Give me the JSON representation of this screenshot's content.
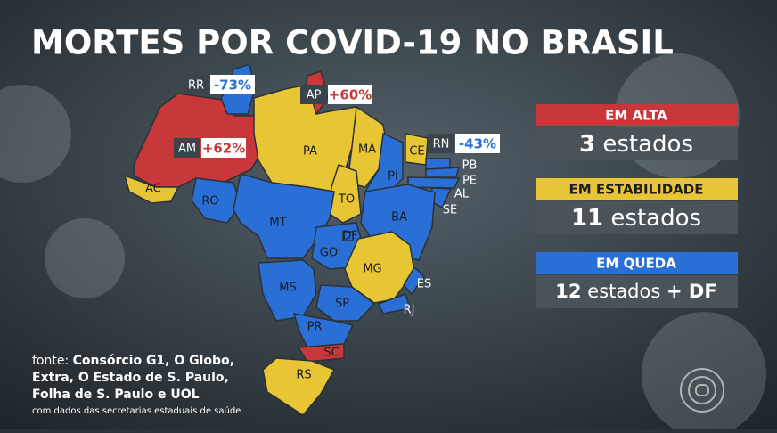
{
  "header": {
    "title": "MORTES POR COVID-19 NO BRASIL"
  },
  "map": {
    "states": [
      "RR",
      "AP",
      "AM",
      "AC",
      "PA",
      "MA",
      "CE",
      "RN",
      "PB",
      "PE",
      "AL",
      "SE",
      "PI",
      "TO",
      "BA",
      "RO",
      "MT",
      "DF",
      "GO",
      "MG",
      "ES",
      "RJ",
      "SP",
      "MS",
      "PR",
      "SC",
      "RS"
    ],
    "callouts": [
      {
        "state": "RR",
        "change": "-73%"
      },
      {
        "state": "AP",
        "change": "+60%"
      },
      {
        "state": "AM",
        "change": "+62%"
      },
      {
        "state": "RN",
        "change": "-43%"
      }
    ]
  },
  "legend": [
    {
      "heading": "EM ALTA",
      "count": "3",
      "unit": "estados"
    },
    {
      "heading": "EM ESTABILIDADE",
      "count": "11",
      "unit": "estados"
    },
    {
      "heading": "EM QUEDA",
      "count": "12",
      "unit": "estados",
      "extra": "+ DF"
    }
  ],
  "source": {
    "label": "fonte:",
    "lines": [
      "Consórcio G1, O Globo,",
      "Extra, O Estado de S. Paulo,",
      "Folha de S. Paulo e UOL"
    ],
    "note": "com dados das secretarias estaduais de saúde"
  }
}
